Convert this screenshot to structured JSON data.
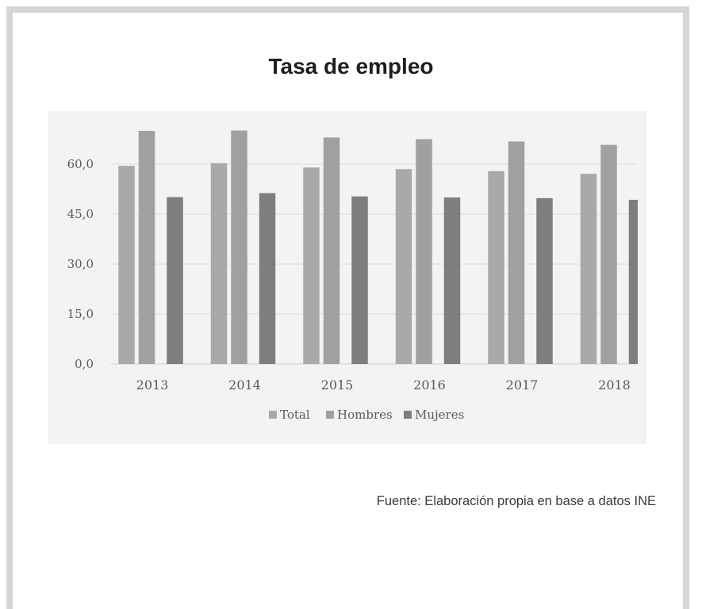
{
  "colors": {
    "Total": "#a9a9a9",
    "Hombres": "#a0a0a0",
    "Mujeres": "#7e7e7e",
    "grid": "#dcdcdc",
    "panel": "#f3f3f3"
  },
  "chart_data": {
    "type": "bar",
    "title": "Tasa de empleo",
    "xlabel": "",
    "ylabel": "",
    "categories": [
      "2013",
      "2014",
      "2015",
      "2016",
      "2017",
      "2018"
    ],
    "series": [
      {
        "name": "Total",
        "values": [
          59.5,
          60.3,
          59.0,
          58.5,
          57.9,
          57.1
        ]
      },
      {
        "name": "Hombres",
        "values": [
          70.0,
          70.1,
          68.0,
          67.5,
          66.8,
          65.8
        ]
      },
      {
        "name": "Mujeres",
        "values": [
          50.1,
          51.3,
          50.3,
          50.0,
          49.8,
          49.3
        ]
      }
    ],
    "ylim": [
      0,
      75
    ],
    "yticks": [
      "0,0",
      "15,0",
      "30,0",
      "45,0",
      "60,0"
    ],
    "ytick_values": [
      0,
      15,
      30,
      45,
      60
    ],
    "grid": true,
    "legend": "bottom"
  },
  "source_note": "Fuente: Elaboración propia en base a datos INE"
}
